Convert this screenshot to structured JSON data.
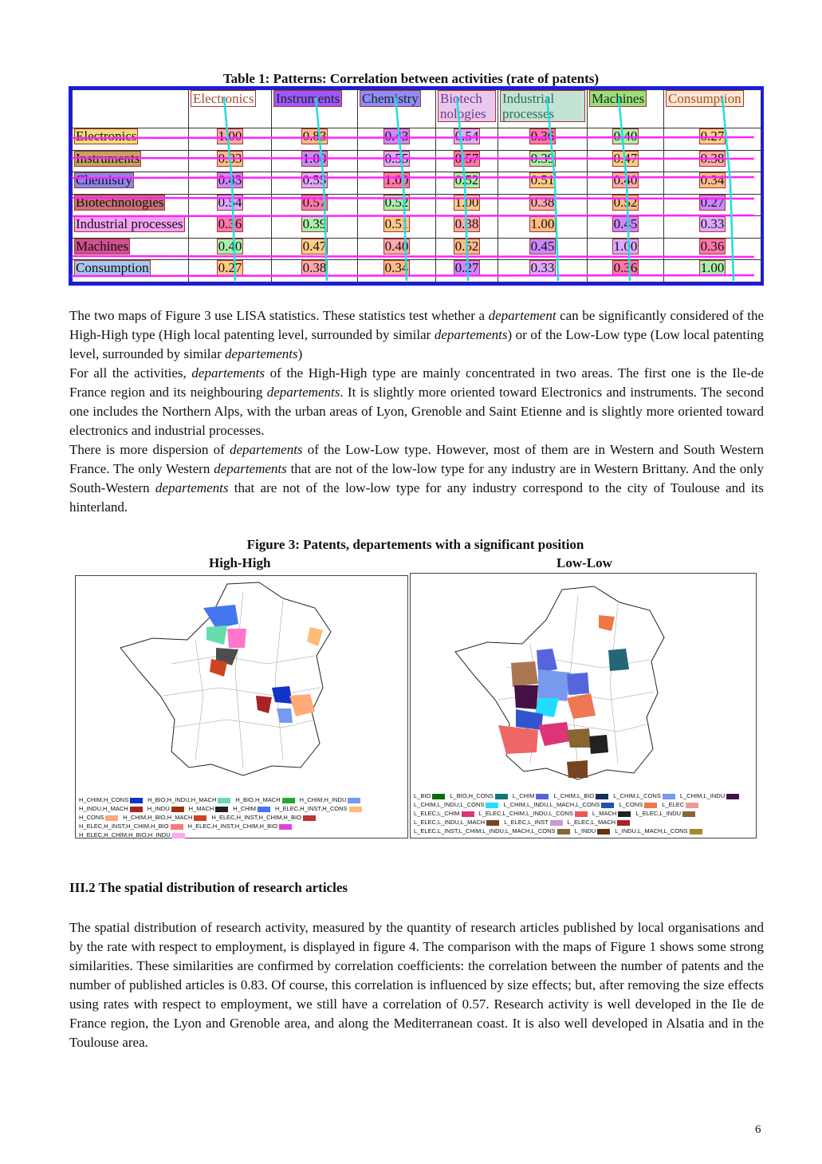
{
  "table": {
    "title": "Table 1: Patterns: Correlation between activities (rate of patents)",
    "columns": [
      "Electronics",
      "Instruments",
      "Chemistry",
      "Biotech nologies",
      "Industrial processes",
      "Machines",
      "Consumption"
    ],
    "rows": [
      {
        "label": "Electronics",
        "values": [
          "1.00",
          "0.83",
          "0.43",
          "0.54",
          "0.36",
          "0.40",
          "0.27"
        ]
      },
      {
        "label": "Instruments",
        "values": [
          "0.83",
          "1.00",
          "0.55",
          "0.57",
          "0.39",
          "0.47",
          "0.38"
        ]
      },
      {
        "label": "Chemistry",
        "values": [
          "0.43",
          "0.55",
          "1.00",
          "0.52",
          "0.51",
          "0.40",
          "0.34"
        ]
      },
      {
        "label": "Biotechnologies",
        "values": [
          "0.54",
          "0.57",
          "0.52",
          "1.00",
          "0.38",
          "0.52",
          "0.27"
        ]
      },
      {
        "label": "Industrial processes",
        "values": [
          "0.36",
          "0.39",
          "0.51",
          "0.38",
          "1.00",
          "0.45",
          "0.33"
        ]
      },
      {
        "label": "Machines",
        "values": [
          "0.40",
          "0.47",
          "0.40",
          "0.52",
          "0.45",
          "1.00",
          "0.36"
        ]
      },
      {
        "label": "Consumption",
        "values": [
          "0.27",
          "0.38",
          "0.34",
          "0.27",
          "0.33",
          "0.36",
          "1.00"
        ]
      }
    ]
  },
  "paragraph1": {
    "part1": "The two maps of Figure 3 use LISA statistics. These statistics test whether a ",
    "em1": "departement",
    "part2": " can be significantly considered of the High-High type (High local patenting level, surrounded by similar ",
    "em2": "departements",
    "part3": ") or of the Low-Low type (Low local patenting level, surrounded by similar ",
    "em3": "departements",
    "part4": ")",
    "line2_a": "For all the activities, ",
    "line2_em": "departements",
    "line2_b": " of the High-High type are mainly concentrated in two areas. The first one is the Ile-de France region and its neighbouring ",
    "line2_em2": "departements",
    "line2_c": ". It is slightly more oriented toward Electronics and instruments. The second one includes the Northern Alps, with the urban areas of Lyon, Grenoble and Saint Etienne and is slightly more oriented toward electronics and industrial processes.",
    "line3_a": "There is more dispersion of ",
    "line3_em": "departements",
    "line3_b": " of the Low-Low type. However, most of them are in Western and South Western France. The only Western ",
    "line3_em2": "departements",
    "line3_c": " that are not of the low-low type for any industry are in Western Brittany. And the only South-Western ",
    "line3_em3": "departements",
    "line3_d": " that are not of the low-low type for any industry correspond to the city of Toulouse and its hinterland."
  },
  "figure": {
    "title": "Figure 3: Patents, departements with a significant position",
    "left_label": "High-High",
    "right_label": "Low-Low",
    "left_legend": [
      "H_CHIM,H_CONS",
      "H_BIO,H_INDU,H_MACH",
      "H_BIO,H_MACH",
      "H_CHIM,H_INDU",
      "H_INDU,H_MACH",
      "H_INDU",
      "H_MACH",
      "H_CHIM",
      "H_ELEC,H_INST,H_CONS",
      "H_CONS",
      "H_CHIM,H_BIO,H_MACH",
      "H_ELEC,H_INST,H_CHIM,H_BIO",
      "H_ELEC,H_INST,H_CHIM,H_BIO",
      "H_ELEC,H_INST,H_CHIM,H_BIO",
      "H_ELEC,H_CHIM,H_BIO,H_INDU"
    ],
    "right_legend": [
      "L_BIO",
      "L_BIO,H_CONS",
      "L_CHIM",
      "L_CHIM,L_BIO",
      "L_CHIM,L_CONS",
      "L_CHIM,L_INDU",
      "L_CHIM,L_INDU,L_CONS",
      "L_CHIM,L_INDU,L_MACH,L_CONS",
      "L_CONS",
      "L_ELEC",
      "L_ELEC,L_CHIM",
      "L_ELEC,L_CHIM,L_INDU,L_CONS",
      "L_MACH",
      "L_ELEC,L_INDU",
      "L_ELEC,L_INDU,L_MACH",
      "L_ELEC,L_INST",
      "L_ELEC,L_MACH",
      "L_ELEC,L_INST,L_CHIM,L_INDU,L_MACH,L_CONS",
      "L_INDU",
      "L_INDU,L_MACH,L_CONS"
    ]
  },
  "section": {
    "heading": "III.2 The spatial distribution of research articles",
    "body": "The spatial distribution of research activity, measured by the quantity of research articles published by local organisations and by the rate with respect to employment, is displayed in figure 4. The comparison with the maps of Figure 1 shows some strong similarities. These similarities are confirmed by correlation coefficients: the correlation between the number of patents and the number of published articles is 0.83. Of course, this correlation is influenced by size effects; but, after removing the size effects using rates with respect to employment, we still have a correlation of 0.57. Research activity is well developed in the Ile de France region, the Lyon and Grenoble area, and along the Mediterranean coast. It is also well developed in Alsatia and in the Toulouse area."
  },
  "page_number": "6",
  "colors": {
    "table_border": "#1a1aee",
    "row_lines": "#ff22ff",
    "col_lines": "#22dddd"
  }
}
